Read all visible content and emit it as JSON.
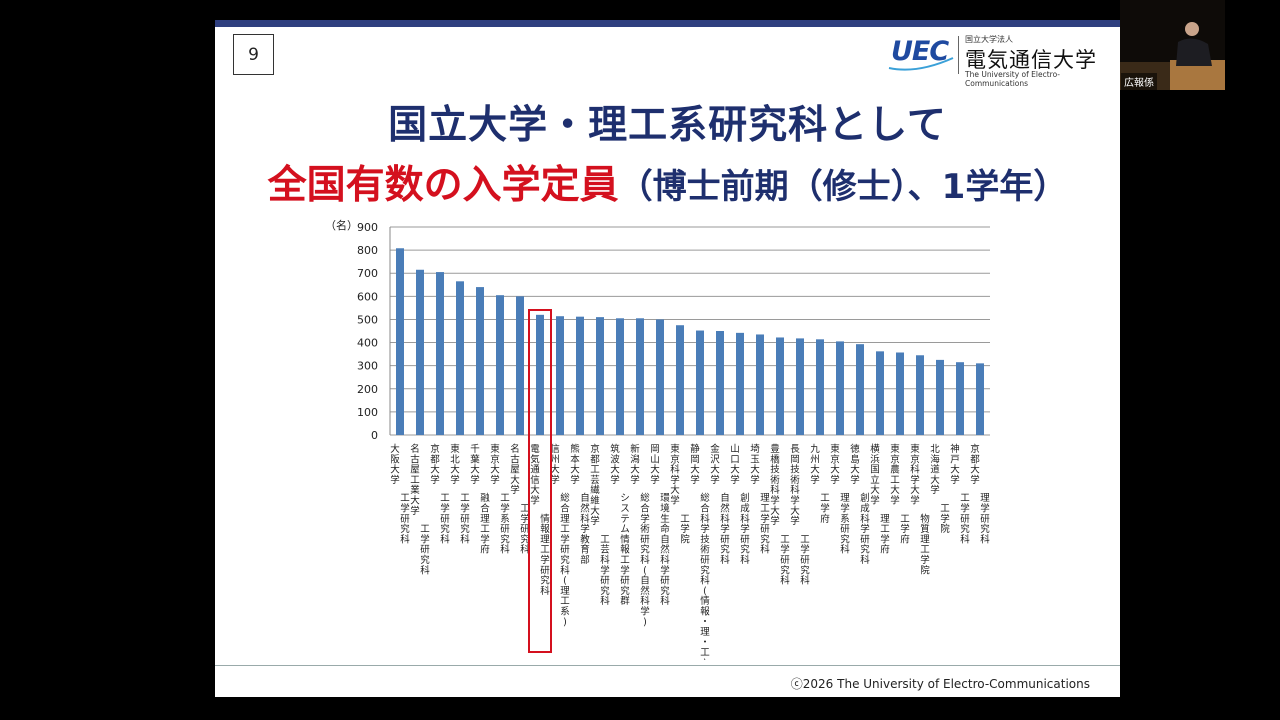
{
  "slide": {
    "page_number": "9",
    "logo": {
      "mark": "UEC",
      "sub": "国立大学法人",
      "name": "電気通信大学",
      "english": "The University of Electro-Communications"
    },
    "title_line1": "国立大学・理工系研究科として",
    "title_line2_red": "全国有数の入学定員",
    "title_line2_rest": "（博士前期（修士）、1学年）",
    "footer": "ⓒ2026  The University of Electro-Communications",
    "highlight_color": "#d4101e"
  },
  "speaker": {
    "label": "広報係"
  },
  "chart_data": {
    "type": "bar",
    "ylabel": "（名）",
    "ylim": [
      0,
      900
    ],
    "yticks": [
      0,
      100,
      200,
      300,
      400,
      500,
      600,
      700,
      800,
      900
    ],
    "grid": true,
    "bar_color": "#4a7db8",
    "highlighted_index": 7,
    "categories": [
      "大阪大学 工学研究科",
      "名古屋工業大学 工学研究科",
      "京都大学 工学研究科",
      "東北大学 工学研究科",
      "千葉大学 融合理工学府",
      "東京大学 工学系研究科",
      "名古屋大学 工学研究科",
      "電気通信大学 情報理工学研究科",
      "信州大学 総合理工学研究科(理工系)",
      "熊本大学 自然科学教育部",
      "京都工芸繊維大学 工芸科学研究科",
      "筑波大学 システム情報工学研究群",
      "新潟大学 総合学術研究科(自然科学)",
      "岡山大学 環境生命自然科学研究科",
      "東京科学大学 工学院",
      "静岡大学 総合科学技術研究科(情報・理・工)",
      "金沢大学 自然科学研究科",
      "山口大学 創成科学研究科",
      "埼玉大学 理工学研究科",
      "豊橋技術科学大学 工学研究科",
      "長岡技術科学大学 工学研究科",
      "九州大学 工学府",
      "東京大学 理学系研究科",
      "徳島大学 創成科学研究科",
      "横浜国立大学 理工学府",
      "東京農工大学 工学府",
      "東京科学大学 物質理工学院",
      "北海道大学 工学院",
      "神戸大学 工学研究科",
      "京都大学 理学研究科"
    ],
    "values": [
      808,
      715,
      705,
      665,
      640,
      605,
      600,
      520,
      514,
      512,
      510,
      505,
      505,
      500,
      475,
      452,
      450,
      442,
      435,
      422,
      418,
      414,
      405,
      393,
      362,
      357,
      345,
      325,
      315,
      310
    ]
  }
}
